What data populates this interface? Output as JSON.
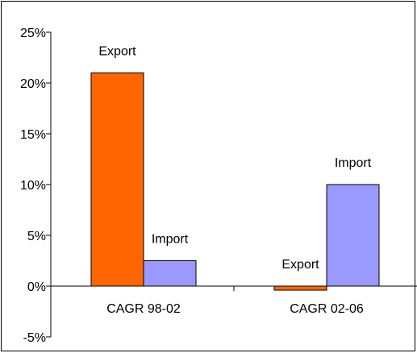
{
  "chart_data": {
    "type": "bar",
    "categories": [
      "CAGR 98-02",
      "CAGR 02-06"
    ],
    "series": [
      {
        "name": "Export",
        "values": [
          21,
          -0.4
        ],
        "color": "#FF6600"
      },
      {
        "name": "Import",
        "values": [
          2.5,
          10
        ],
        "color": "#9999FF"
      }
    ],
    "ylim": [
      -5,
      25
    ],
    "yticks": [
      -5,
      0,
      5,
      10,
      15,
      20,
      25
    ],
    "ytick_labels": [
      "-5%",
      "0%",
      "5%",
      "10%",
      "15%",
      "20%",
      "25%"
    ],
    "grid": false,
    "legend": "none",
    "title": "",
    "xlabel": "",
    "ylabel": ""
  }
}
